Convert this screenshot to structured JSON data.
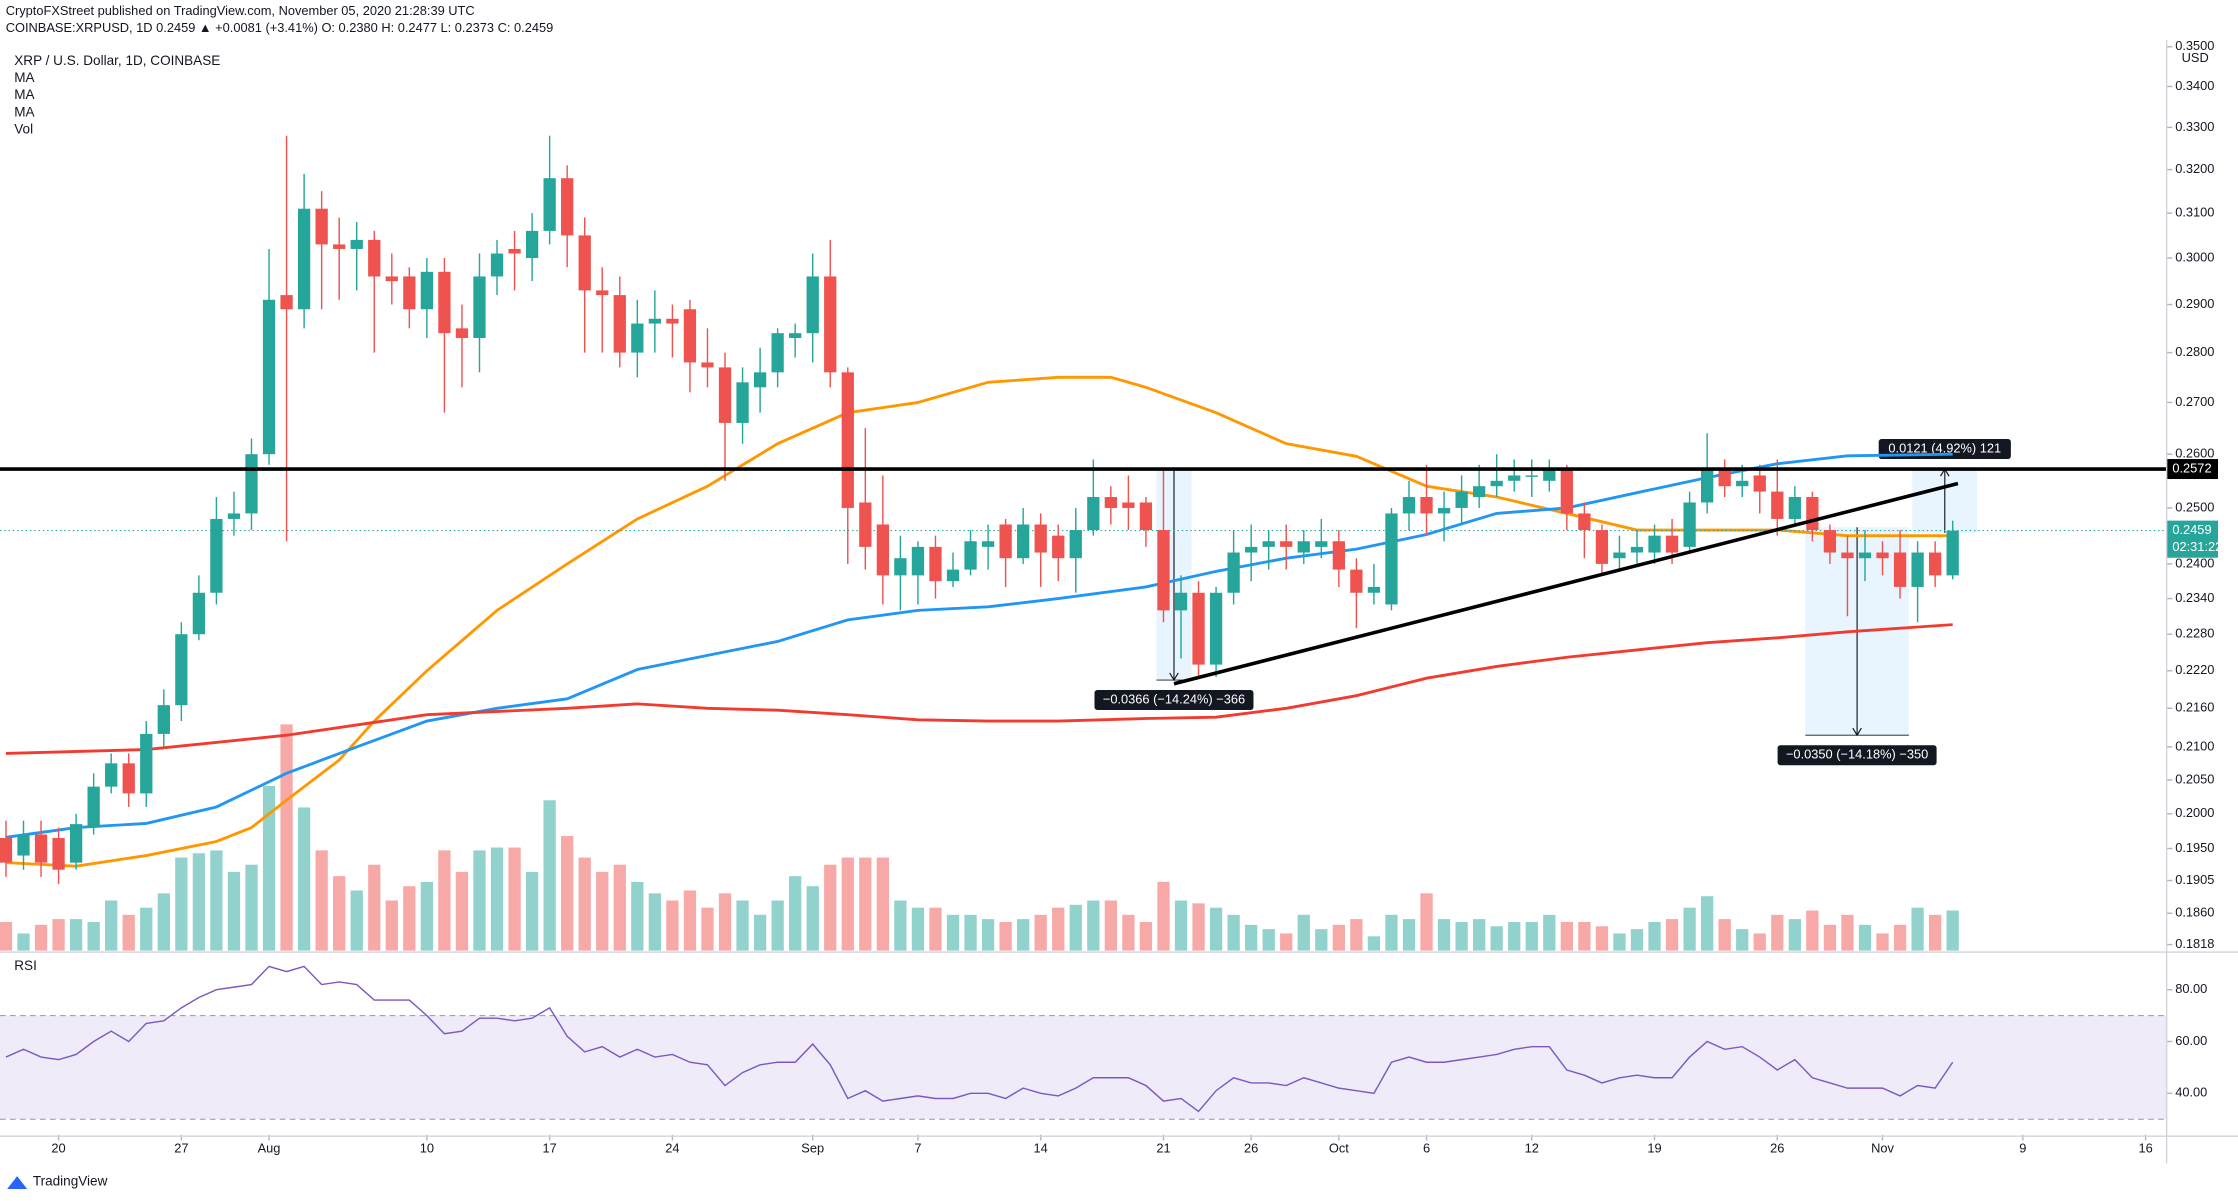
{
  "header": {
    "publisher": "CryptoFXStreet published on TradingView.com, November 05, 2020 21:28:39 UTC",
    "quote": "COINBASE:XRPUSD, 1D  0.2459 ▲ +0.0081 (+3.41%) O: 0.2380 H: 0.2477 L: 0.2373 C: 0.2459",
    "brand": "TradingView"
  },
  "chart_data": {
    "type": "candlestick",
    "title": "XRP / U.S. Dollar, 1D, COINBASE",
    "y_label": "USD",
    "log": true,
    "grid": false,
    "up_color": "#26a69a",
    "down_color": "#ef5350",
    "xlim": [
      -3.34,
      120.2
    ],
    "ylim": [
      0.181,
      0.351
    ],
    "xticks": [
      {
        "value": 0,
        "label": "20"
      },
      {
        "value": 7,
        "label": "27"
      },
      {
        "value": 12,
        "label": "Aug"
      },
      {
        "value": 21,
        "label": "10"
      },
      {
        "value": 28,
        "label": "17"
      },
      {
        "value": 35,
        "label": "24"
      },
      {
        "value": 43,
        "label": "Sep"
      },
      {
        "value": 49,
        "label": "7"
      },
      {
        "value": 56,
        "label": "14"
      },
      {
        "value": 63,
        "label": "21"
      },
      {
        "value": 68,
        "label": "26"
      },
      {
        "value": 73,
        "label": "Oct"
      },
      {
        "value": 78,
        "label": "6"
      },
      {
        "value": 84,
        "label": "12"
      },
      {
        "value": 91,
        "label": "19"
      },
      {
        "value": 98,
        "label": "26"
      },
      {
        "value": 104,
        "label": "Nov"
      },
      {
        "value": 112,
        "label": "9"
      },
      {
        "value": 119,
        "label": "16"
      }
    ],
    "yticks": [
      {
        "value": 0.1818,
        "label": "0.1818"
      },
      {
        "value": 0.186,
        "label": "0.1860"
      },
      {
        "value": 0.1905,
        "label": "0.1905"
      },
      {
        "value": 0.195,
        "label": "0.1950"
      },
      {
        "value": 0.2,
        "label": "0.2000"
      },
      {
        "value": 0.205,
        "label": "0.2050"
      },
      {
        "value": 0.21,
        "label": "0.2100"
      },
      {
        "value": 0.216,
        "label": "0.2160"
      },
      {
        "value": 0.222,
        "label": "0.2220"
      },
      {
        "value": 0.228,
        "label": "0.2280"
      },
      {
        "value": 0.234,
        "label": "0.2340"
      },
      {
        "value": 0.24,
        "label": "0.2400"
      },
      {
        "value": 0.25,
        "label": "0.2500"
      },
      {
        "value": 0.26,
        "label": "0.2600"
      },
      {
        "value": 0.27,
        "label": "0.2700"
      },
      {
        "value": 0.28,
        "label": "0.2800"
      },
      {
        "value": 0.29,
        "label": "0.2900"
      },
      {
        "value": 0.3,
        "label": "0.3000"
      },
      {
        "value": 0.31,
        "label": "0.3100"
      },
      {
        "value": 0.32,
        "label": "0.3200"
      },
      {
        "value": 0.33,
        "label": "0.3300"
      },
      {
        "value": 0.34,
        "label": "0.3400"
      },
      {
        "value": 0.35,
        "label": "0.3500"
      }
    ],
    "x": [
      -3,
      -2,
      -1,
      0,
      1,
      2,
      3,
      4,
      5,
      6,
      7,
      8,
      9,
      10,
      11,
      12,
      13,
      14,
      15,
      16,
      17,
      18,
      19,
      20,
      21,
      22,
      23,
      24,
      25,
      26,
      27,
      28,
      29,
      30,
      31,
      32,
      33,
      34,
      35,
      36,
      37,
      38,
      39,
      40,
      41,
      42,
      43,
      44,
      45,
      46,
      47,
      48,
      49,
      50,
      51,
      52,
      53,
      54,
      55,
      56,
      57,
      58,
      59,
      60,
      61,
      62,
      63,
      64,
      65,
      66,
      67,
      68,
      69,
      70,
      71,
      72,
      73,
      74,
      75,
      76,
      77,
      78,
      79,
      80,
      81,
      82,
      83,
      84,
      85,
      86,
      87,
      88,
      89,
      90,
      91,
      92,
      93,
      94,
      95,
      96,
      97,
      98,
      99,
      100,
      101,
      102,
      103,
      104,
      105,
      106,
      107,
      108
    ],
    "open": [
      0.1965,
      0.194,
      0.197,
      0.1965,
      0.193,
      0.198,
      0.204,
      0.2075,
      0.203,
      0.212,
      0.2165,
      0.228,
      0.235,
      0.248,
      0.249,
      0.26,
      0.292,
      0.289,
      0.311,
      0.303,
      0.302,
      0.304,
      0.296,
      0.296,
      0.289,
      0.297,
      0.285,
      0.283,
      0.296,
      0.302,
      0.3,
      0.306,
      0.318,
      0.305,
      0.293,
      0.292,
      0.28,
      0.286,
      0.287,
      0.289,
      0.278,
      0.277,
      0.266,
      0.273,
      0.276,
      0.283,
      0.284,
      0.296,
      0.276,
      0.251,
      0.247,
      0.238,
      0.238,
      0.243,
      0.237,
      0.239,
      0.243,
      0.247,
      0.241,
      0.247,
      0.245,
      0.241,
      0.246,
      0.252,
      0.251,
      0.251,
      0.246,
      0.232,
      0.235,
      0.223,
      0.235,
      0.242,
      0.243,
      0.244,
      0.242,
      0.243,
      0.244,
      0.239,
      0.235,
      0.233,
      0.249,
      0.252,
      0.249,
      0.25,
      0.252,
      0.254,
      0.255,
      0.256,
      0.255,
      0.257,
      0.249,
      0.246,
      0.241,
      0.242,
      0.242,
      0.245,
      0.243,
      0.251,
      0.257,
      0.254,
      0.256,
      0.253,
      0.248,
      0.252,
      0.246,
      0.242,
      0.241,
      0.242,
      0.242,
      0.236,
      0.242,
      0.238
    ],
    "high": [
      0.199,
      0.199,
      0.199,
      0.198,
      0.2,
      0.206,
      0.209,
      0.209,
      0.214,
      0.219,
      0.23,
      0.238,
      0.252,
      0.253,
      0.263,
      0.302,
      0.328,
      0.319,
      0.315,
      0.309,
      0.308,
      0.306,
      0.301,
      0.298,
      0.3,
      0.3,
      0.29,
      0.301,
      0.304,
      0.306,
      0.31,
      0.328,
      0.321,
      0.309,
      0.298,
      0.296,
      0.291,
      0.293,
      0.29,
      0.291,
      0.285,
      0.28,
      0.277,
      0.281,
      0.285,
      0.286,
      0.301,
      0.304,
      0.277,
      0.265,
      0.256,
      0.245,
      0.244,
      0.245,
      0.242,
      0.246,
      0.247,
      0.248,
      0.25,
      0.249,
      0.247,
      0.25,
      0.259,
      0.254,
      0.256,
      0.252,
      0.257,
      0.238,
      0.237,
      0.236,
      0.246,
      0.247,
      0.246,
      0.247,
      0.246,
      0.248,
      0.246,
      0.241,
      0.24,
      0.25,
      0.255,
      0.258,
      0.253,
      0.256,
      0.258,
      0.26,
      0.259,
      0.259,
      0.259,
      0.258,
      0.251,
      0.247,
      0.245,
      0.246,
      0.247,
      0.248,
      0.253,
      0.264,
      0.259,
      0.258,
      0.258,
      0.259,
      0.254,
      0.253,
      0.247,
      0.245,
      0.246,
      0.244,
      0.246,
      0.244,
      0.244,
      0.2477
    ],
    "low": [
      0.191,
      0.192,
      0.191,
      0.19,
      0.192,
      0.197,
      0.203,
      0.201,
      0.201,
      0.21,
      0.214,
      0.227,
      0.233,
      0.245,
      0.246,
      0.258,
      0.244,
      0.285,
      0.289,
      0.291,
      0.293,
      0.28,
      0.29,
      0.285,
      0.283,
      0.268,
      0.273,
      0.276,
      0.292,
      0.293,
      0.295,
      0.303,
      0.298,
      0.28,
      0.28,
      0.277,
      0.275,
      0.28,
      0.279,
      0.272,
      0.273,
      0.255,
      0.262,
      0.268,
      0.273,
      0.279,
      0.278,
      0.273,
      0.24,
      0.239,
      0.233,
      0.232,
      0.233,
      0.234,
      0.236,
      0.238,
      0.239,
      0.236,
      0.24,
      0.236,
      0.237,
      0.235,
      0.245,
      0.247,
      0.246,
      0.243,
      0.23,
      0.224,
      0.221,
      0.221,
      0.233,
      0.237,
      0.239,
      0.239,
      0.24,
      0.241,
      0.236,
      0.229,
      0.233,
      0.232,
      0.246,
      0.245,
      0.244,
      0.247,
      0.25,
      0.252,
      0.253,
      0.252,
      0.253,
      0.246,
      0.241,
      0.238,
      0.239,
      0.24,
      0.24,
      0.24,
      0.242,
      0.249,
      0.252,
      0.252,
      0.249,
      0.245,
      0.247,
      0.244,
      0.24,
      0.231,
      0.237,
      0.238,
      0.234,
      0.23,
      0.236,
      0.2373
    ],
    "close": [
      0.193,
      0.197,
      0.193,
      0.192,
      0.1985,
      0.204,
      0.2075,
      0.203,
      0.212,
      0.2165,
      0.228,
      0.235,
      0.248,
      0.249,
      0.26,
      0.291,
      0.289,
      0.311,
      0.303,
      0.302,
      0.304,
      0.296,
      0.295,
      0.289,
      0.297,
      0.284,
      0.283,
      0.296,
      0.301,
      0.301,
      0.306,
      0.318,
      0.305,
      0.293,
      0.292,
      0.28,
      0.286,
      0.287,
      0.286,
      0.278,
      0.277,
      0.266,
      0.274,
      0.276,
      0.284,
      0.284,
      0.296,
      0.276,
      0.25,
      0.243,
      0.238,
      0.241,
      0.243,
      0.237,
      0.239,
      0.244,
      0.244,
      0.241,
      0.247,
      0.242,
      0.241,
      0.246,
      0.252,
      0.25,
      0.25,
      0.246,
      0.232,
      0.235,
      0.223,
      0.235,
      0.242,
      0.243,
      0.244,
      0.243,
      0.244,
      0.244,
      0.239,
      0.235,
      0.236,
      0.249,
      0.252,
      0.249,
      0.25,
      0.253,
      0.254,
      0.255,
      0.256,
      0.256,
      0.257,
      0.249,
      0.246,
      0.24,
      0.242,
      0.243,
      0.245,
      0.242,
      0.251,
      0.257,
      0.254,
      0.255,
      0.253,
      0.248,
      0.252,
      0.246,
      0.242,
      0.241,
      0.242,
      0.241,
      0.236,
      0.242,
      0.238,
      0.2459
    ],
    "series": [
      {
        "name": "MA",
        "color": "#ff9800",
        "x": [
          -3,
          1,
          5,
          9,
          11,
          13,
          16,
          18,
          21,
          25,
          29,
          33,
          37,
          41,
          45,
          49,
          53,
          57,
          60,
          62,
          66,
          70,
          74,
          78,
          82,
          86,
          90,
          94,
          98,
          102,
          108
        ],
        "values": [
          0.193,
          0.1925,
          0.194,
          0.196,
          0.198,
          0.202,
          0.208,
          0.214,
          0.222,
          0.232,
          0.24,
          0.248,
          0.254,
          0.262,
          0.268,
          0.27,
          0.274,
          0.275,
          0.275,
          0.273,
          0.268,
          0.262,
          0.2596,
          0.254,
          0.252,
          0.249,
          0.246,
          0.246,
          0.246,
          0.245,
          0.245
        ]
      },
      {
        "name": "MA",
        "color": "#2196f3",
        "x": [
          -3,
          1,
          5,
          9,
          13,
          17,
          21,
          25,
          29,
          33,
          37,
          41,
          45,
          49,
          53,
          57,
          62,
          66,
          70,
          74,
          78,
          82,
          86,
          90,
          94,
          98,
          102,
          108
        ],
        "values": [
          0.1966,
          0.198,
          0.1986,
          0.201,
          0.206,
          0.21,
          0.214,
          0.216,
          0.2175,
          0.2222,
          0.2245,
          0.2268,
          0.2304,
          0.232,
          0.2326,
          0.234,
          0.236,
          0.2387,
          0.241,
          0.2426,
          0.2452,
          0.249,
          0.25,
          0.2528,
          0.2556,
          0.2582,
          0.2597,
          0.26
        ]
      },
      {
        "name": "MA",
        "color": "#f23b2e",
        "x": [
          -3,
          5,
          13,
          21,
          29,
          33,
          37,
          41,
          45,
          49,
          53,
          57,
          62,
          66,
          70,
          74,
          78,
          82,
          86,
          90,
          94,
          98,
          102,
          108
        ],
        "values": [
          0.209,
          0.2096,
          0.2118,
          0.215,
          0.216,
          0.2167,
          0.216,
          0.2157,
          0.215,
          0.2142,
          0.214,
          0.214,
          0.2144,
          0.2146,
          0.216,
          0.218,
          0.2208,
          0.2227,
          0.2242,
          0.2254,
          0.2266,
          0.2274,
          0.2284,
          0.2296
        ]
      }
    ],
    "volume": {
      "name": "Vol",
      "ylim": [
        0,
        634
      ],
      "values": [
        20,
        12,
        18,
        22,
        22,
        20,
        35,
        25,
        30,
        40,
        65,
        68,
        70,
        55,
        60,
        115,
        158,
        100,
        70,
        52,
        42,
        60,
        35,
        45,
        48,
        70,
        55,
        70,
        72,
        72,
        55,
        105,
        80,
        65,
        55,
        60,
        48,
        40,
        35,
        42,
        30,
        40,
        35,
        25,
        35,
        52,
        45,
        60,
        65,
        65,
        65,
        35,
        30,
        30,
        25,
        25,
        22,
        20,
        22,
        25,
        30,
        32,
        35,
        35,
        25,
        20,
        48,
        35,
        33,
        30,
        25,
        18,
        15,
        12,
        25,
        15,
        18,
        22,
        10,
        25,
        22,
        40,
        22,
        20,
        22,
        17,
        20,
        20,
        25,
        20,
        20,
        17,
        12,
        15,
        20,
        22,
        30,
        38,
        22,
        15,
        12,
        25,
        22,
        28,
        18,
        25,
        18,
        12,
        18,
        30,
        25,
        28
      ]
    },
    "rsi": {
      "name": "RSI",
      "color": "#7e57c2",
      "ylim": [
        24,
        94
      ],
      "band": [
        30,
        70
      ],
      "yticks": [
        {
          "value": 40,
          "label": "40.00"
        },
        {
          "value": 60,
          "label": "60.00"
        },
        {
          "value": 80,
          "label": "80.00"
        }
      ],
      "values": [
        54,
        57,
        54,
        53,
        55,
        60,
        64,
        60,
        67,
        68,
        73,
        77,
        80,
        81,
        82,
        89,
        87,
        89,
        82,
        83,
        82,
        76,
        76,
        76,
        70,
        63,
        64,
        69,
        69,
        68,
        69,
        73,
        62,
        56,
        58,
        54,
        57,
        54,
        55,
        52,
        51,
        43,
        48,
        51,
        52,
        52,
        59,
        51,
        38,
        41,
        37,
        38,
        39,
        38,
        38,
        40,
        40,
        38,
        42,
        40,
        39,
        42,
        46,
        46,
        46,
        43,
        37,
        38,
        33,
        41,
        46,
        44,
        44,
        43,
        46,
        44,
        42,
        41,
        40,
        52,
        54,
        52,
        52,
        53,
        54,
        55,
        57,
        58,
        58,
        49,
        47,
        44,
        46,
        47,
        46,
        46,
        54,
        60,
        57,
        58,
        54,
        49,
        53,
        46,
        44,
        42,
        42,
        42,
        39,
        43,
        42,
        52
      ]
    },
    "hline": {
      "value": 0.2572,
      "label": "0.2572",
      "color": "#000000"
    },
    "last_price": {
      "value": 0.2459,
      "label": "0.2459",
      "countdown": "02:31:22",
      "color": "#26a69a"
    },
    "trendline": {
      "x": [
        63.6,
        108.3
      ],
      "y": [
        0.2199,
        0.2545
      ],
      "color": "#000000"
    },
    "measures": [
      {
        "x": [
          62.6,
          64.6
        ],
        "y": [
          0.2575,
          0.2205
        ],
        "label": "−0.0366 (−14.24%) −366"
      },
      {
        "x": [
          99.6,
          105.5
        ],
        "y": [
          0.2465,
          0.2118
        ],
        "label": "−0.0350 (−14.18%) −350"
      },
      {
        "x": [
          105.7,
          109.4
        ],
        "y": [
          0.2455,
          0.2572
        ],
        "label": "0.0121 (4.92%) 121"
      }
    ]
  }
}
